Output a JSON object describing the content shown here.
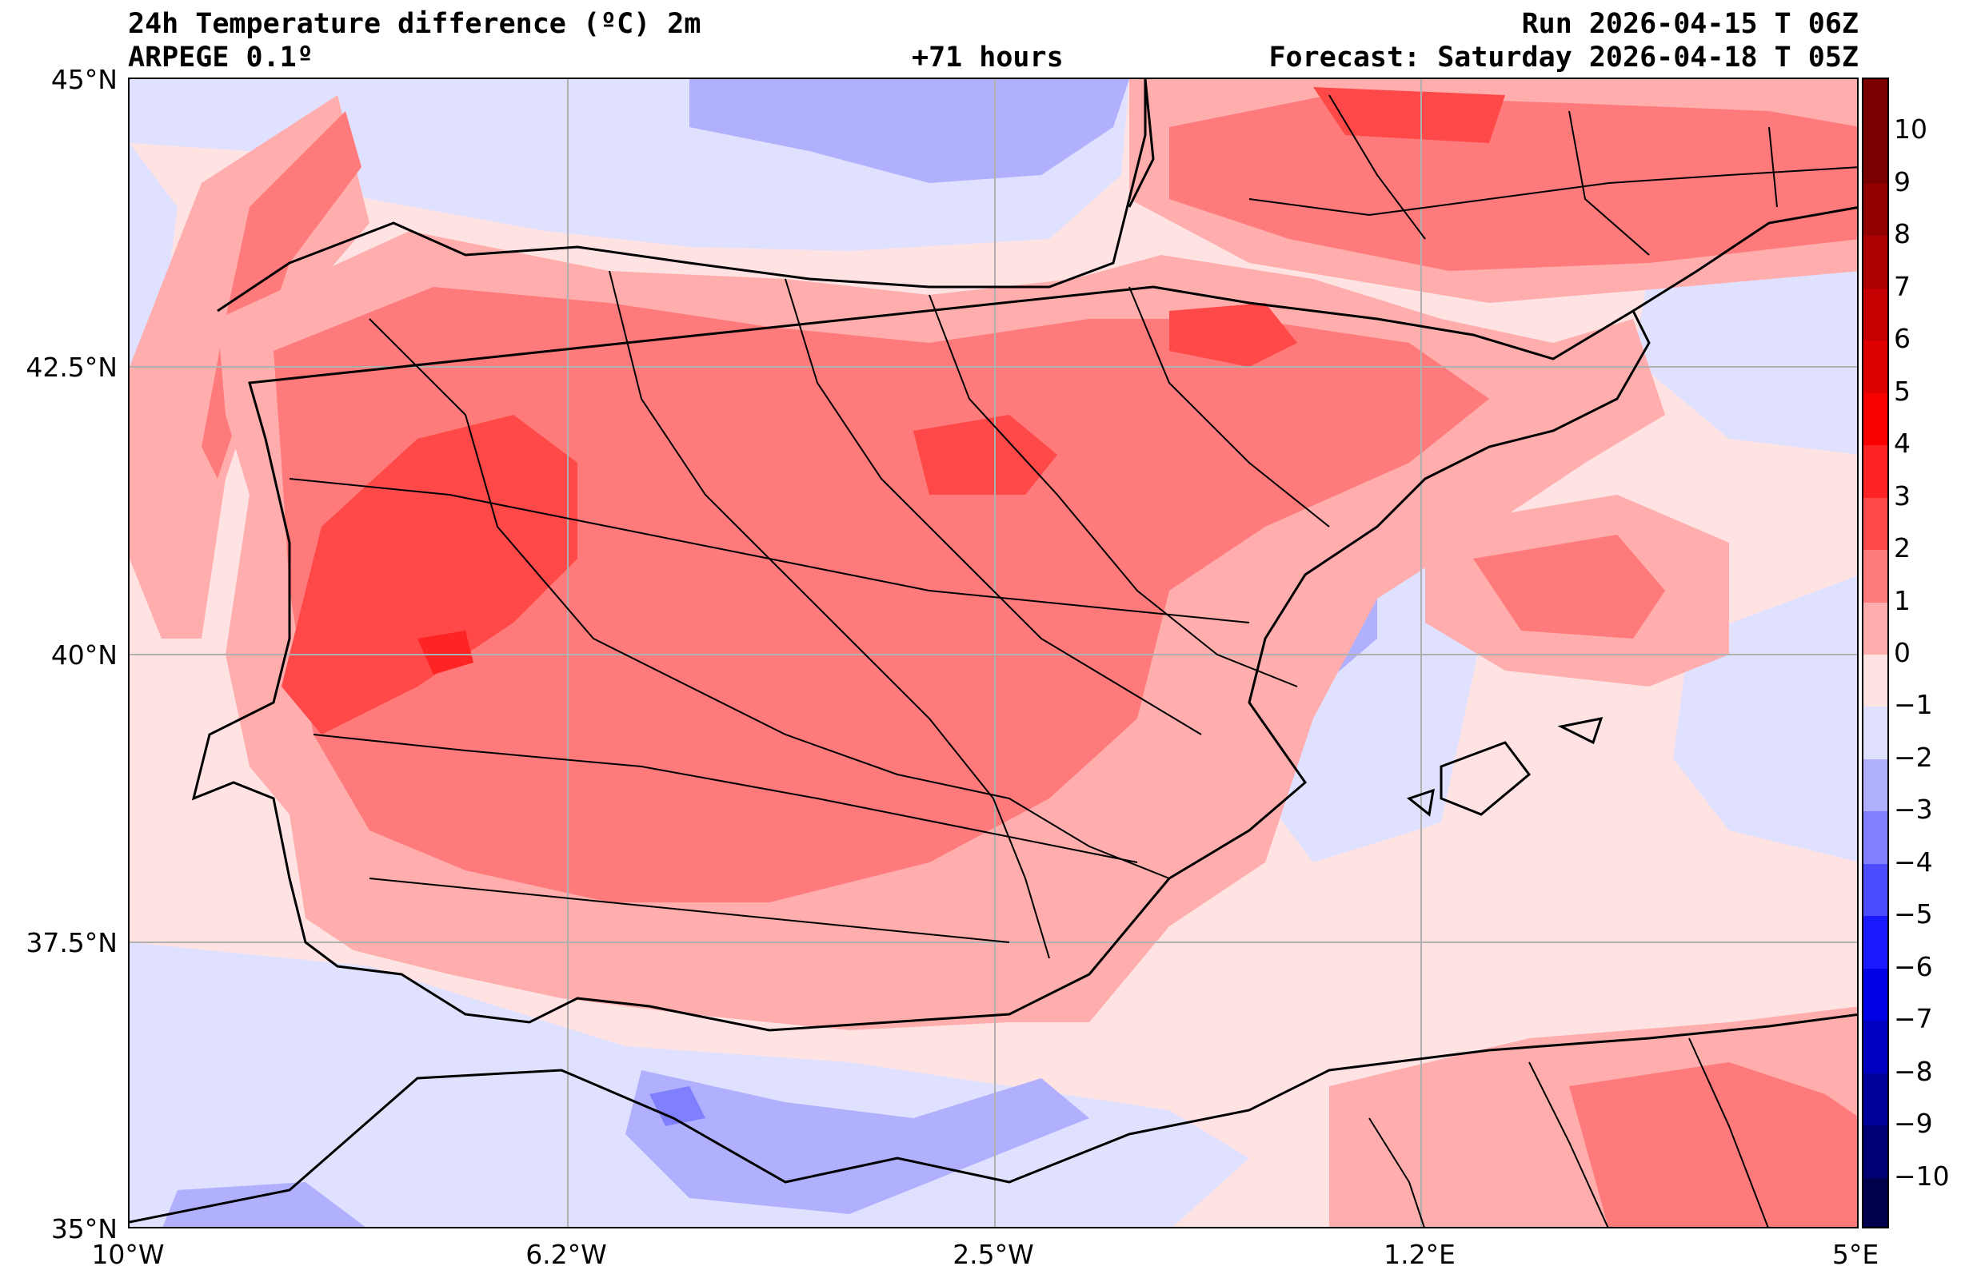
{
  "header": {
    "title": "24h Temperature difference (ºC) 2m",
    "model": "ARPEGE 0.1º",
    "lead_time": "+71 hours",
    "run": "Run 2026-04-15 T 06Z",
    "forecast": "Forecast: Saturday 2026-04-18 T 05Z"
  },
  "axes": {
    "lat_ticks": [
      "45°N",
      "42.5°N",
      "40°N",
      "37.5°N",
      "35°N"
    ],
    "lon_ticks": [
      "10°W",
      "6.2°W",
      "2.5°W",
      "1.2°E",
      "5°E"
    ]
  },
  "colorbar": {
    "labels": [
      "10",
      "9",
      "8",
      "7",
      "6",
      "5",
      "4",
      "3",
      "2",
      "1",
      "0",
      "−1",
      "−2",
      "−3",
      "−4",
      "−5",
      "−6",
      "−7",
      "−8",
      "−9",
      "−10"
    ],
    "colors": [
      "#7a0000",
      "#930000",
      "#ac0000",
      "#c60000",
      "#df0000",
      "#f80000",
      "#ff2424",
      "#ff4848",
      "#ff7a7a",
      "#ffadad",
      "#ffe3e3",
      "#e0e0ff",
      "#b0b0ff",
      "#8080ff",
      "#4c4cff",
      "#1a1aff",
      "#0000e6",
      "#0000c0",
      "#00009a",
      "#000074",
      "#00004e"
    ],
    "top_color": "#7a0000",
    "bottom_color": "#00004e"
  },
  "map_colors": {
    "sea_warm": "#ffe3e3",
    "sea_cool": "#e0e0ff",
    "cool2": "#b0b0ff",
    "cool3": "#8080ff",
    "warm1": "#ffadad",
    "warm2": "#ff7a7a",
    "warm3": "#ff4848",
    "warm4": "#ff2424"
  }
}
